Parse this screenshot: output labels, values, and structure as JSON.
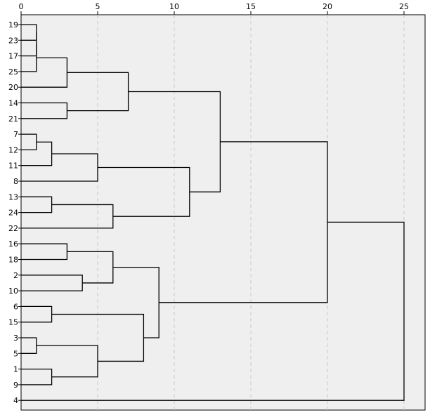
{
  "chart_data": {
    "type": "dendrogram",
    "title": "",
    "xlabel": "",
    "ylabel": "",
    "xlim": [
      0,
      25
    ],
    "x_ticks": [
      0,
      5,
      10,
      15,
      20,
      25
    ],
    "x_tick_labels": [
      "0",
      "5",
      "10",
      "15",
      "20",
      "25"
    ],
    "grid": "vertical dashed at x ticks",
    "background": "#efefef",
    "line_color": "#000000",
    "leaves": [
      "19",
      "23",
      "17",
      "25",
      "20",
      "14",
      "21",
      "7",
      "12",
      "11",
      "8",
      "13",
      "24",
      "22",
      "16",
      "18",
      "2",
      "10",
      "6",
      "15",
      "3",
      "5",
      "1",
      "9",
      "4"
    ],
    "merges": [
      {
        "id": "A",
        "a": "L0",
        "b": "L1",
        "height": 1
      },
      {
        "id": "B",
        "a": "A",
        "b": "L2",
        "height": 1
      },
      {
        "id": "C",
        "a": "B",
        "b": "L3",
        "height": 1
      },
      {
        "id": "D",
        "a": "C",
        "b": "L4",
        "height": 3
      },
      {
        "id": "E",
        "a": "L5",
        "b": "L6",
        "height": 3
      },
      {
        "id": "F",
        "a": "D",
        "b": "E",
        "height": 7
      },
      {
        "id": "G",
        "a": "L7",
        "b": "L8",
        "height": 1
      },
      {
        "id": "H",
        "a": "G",
        "b": "L9",
        "height": 2
      },
      {
        "id": "I",
        "a": "H",
        "b": "L10",
        "height": 5
      },
      {
        "id": "J",
        "a": "L11",
        "b": "L12",
        "height": 2
      },
      {
        "id": "K",
        "a": "J",
        "b": "L13",
        "height": 6
      },
      {
        "id": "Lm",
        "a": "I",
        "b": "K",
        "height": 11
      },
      {
        "id": "M",
        "a": "F",
        "b": "Lm",
        "height": 13
      },
      {
        "id": "N",
        "a": "L14",
        "b": "L15",
        "height": 3
      },
      {
        "id": "O",
        "a": "L16",
        "b": "L17",
        "height": 4
      },
      {
        "id": "P",
        "a": "N",
        "b": "O",
        "height": 6
      },
      {
        "id": "Q",
        "a": "L18",
        "b": "L19",
        "height": 2
      },
      {
        "id": "R",
        "a": "L20",
        "b": "L21",
        "height": 1
      },
      {
        "id": "S",
        "a": "L22",
        "b": "L23",
        "height": 2
      },
      {
        "id": "T",
        "a": "R",
        "b": "S",
        "height": 5
      },
      {
        "id": "U",
        "a": "Q",
        "b": "T",
        "height": 8
      },
      {
        "id": "V",
        "a": "P",
        "b": "U",
        "height": 9
      },
      {
        "id": "W",
        "a": "M",
        "b": "V",
        "height": 20
      },
      {
        "id": "X",
        "a": "W",
        "b": "L24",
        "height": 25
      }
    ]
  }
}
